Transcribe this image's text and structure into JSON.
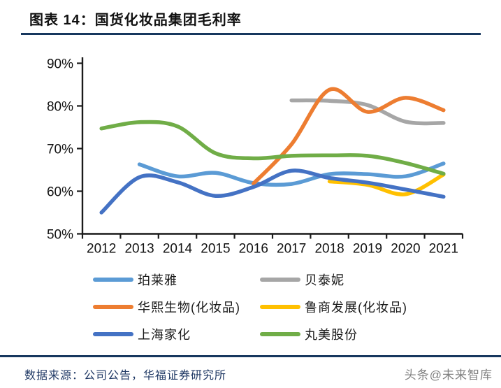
{
  "header": {
    "title": "图表 14：国货化妆品集团毛利率"
  },
  "footer": {
    "source": "数据来源：公司公告，华福证券研究所",
    "watermark": "头条@未来智库"
  },
  "colors": {
    "rule_navy": "#17375E",
    "source_text": "#1F3864",
    "watermark_gray": "#808080",
    "axis_black": "#1a1a1a"
  },
  "chart_data": {
    "type": "line",
    "title": "国货化妆品集团毛利率",
    "xlabel": "",
    "ylabel": "",
    "ylim": [
      50,
      90
    ],
    "yticks": [
      "50%",
      "60%",
      "70%",
      "80%",
      "90%"
    ],
    "grid": false,
    "legend_position": "bottom",
    "line_style": "smooth",
    "categories": [
      "2012",
      "2013",
      "2014",
      "2015",
      "2016",
      "2017",
      "2018",
      "2019",
      "2020",
      "2021"
    ],
    "series": [
      {
        "name": "珀莱雅",
        "key": "proya",
        "color": "#5B9BD5",
        "values": [
          null,
          66.3,
          63.5,
          64.3,
          61.9,
          61.7,
          64.0,
          64.0,
          63.5,
          66.5
        ]
      },
      {
        "name": "贝泰妮",
        "key": "betaini",
        "color": "#A6A6A6",
        "values": [
          null,
          null,
          null,
          null,
          null,
          81.3,
          81.2,
          80.2,
          76.3,
          76.0
        ]
      },
      {
        "name": "华熙生物(化妆品)",
        "key": "bloomage",
        "color": "#ED7D31",
        "values": [
          null,
          null,
          null,
          null,
          61.8,
          71.0,
          83.8,
          78.6,
          81.9,
          79.0
        ]
      },
      {
        "name": "鲁商发展(化妆品)",
        "key": "lushang",
        "color": "#FFC000",
        "values": [
          null,
          null,
          null,
          null,
          null,
          null,
          62.3,
          61.5,
          59.3,
          63.9
        ]
      },
      {
        "name": "上海家化",
        "key": "jahwa",
        "color": "#4472C4",
        "values": [
          55.0,
          63.3,
          62.1,
          58.9,
          61.0,
          64.8,
          63.1,
          62.0,
          60.4,
          58.7
        ]
      },
      {
        "name": "丸美股份",
        "key": "marubi",
        "color": "#70AD47",
        "values": [
          74.7,
          76.2,
          75.2,
          68.9,
          67.7,
          68.3,
          68.4,
          68.3,
          66.6,
          64.1
        ]
      }
    ]
  }
}
